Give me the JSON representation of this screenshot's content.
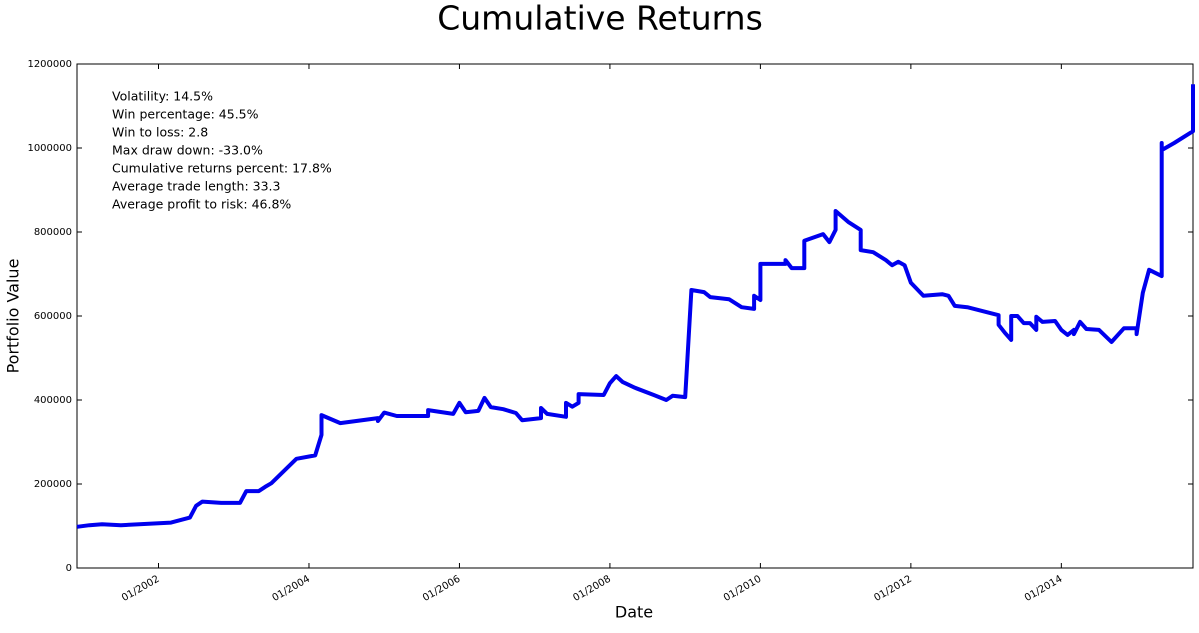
{
  "chart_data": {
    "type": "line",
    "title": "Cumulative Returns",
    "xlabel": "Date",
    "ylabel": "Portfolio Value",
    "annotations": [
      "Volatility: 14.5%",
      "Win percentage: 45.5%",
      "Win to loss: 2.8",
      "Max draw down: -33.0%",
      "Cumulative returns percent: 17.8%",
      "Average trade length: 33.3",
      "Average profit to risk: 46.8%"
    ],
    "xlim": [
      "2000-12",
      "2015-10"
    ],
    "xticks": [
      {
        "value": "2002-01",
        "label": "01/2002"
      },
      {
        "value": "2004-01",
        "label": "01/2004"
      },
      {
        "value": "2006-01",
        "label": "01/2006"
      },
      {
        "value": "2008-01",
        "label": "01/2008"
      },
      {
        "value": "2010-01",
        "label": "01/2010"
      },
      {
        "value": "2012-01",
        "label": "01/2012"
      },
      {
        "value": "2014-01",
        "label": "01/2014"
      }
    ],
    "ylim": [
      0,
      1200000
    ],
    "yticks": [
      0,
      200000,
      400000,
      600000,
      800000,
      1000000,
      1200000
    ],
    "grid": false,
    "x": [
      "2000-12",
      "2001-02",
      "2001-04",
      "2001-07",
      "2002-03",
      "2002-06",
      "2002-07",
      "2002-08",
      "2002-11",
      "2003-02",
      "2003-03",
      "2003-05",
      "2003-06",
      "2003-07",
      "2003-11",
      "2004-02",
      "2004-03",
      "2004-03",
      "2004-06",
      "2004-12",
      "2004-12",
      "2005-01",
      "2005-03",
      "2005-08",
      "2005-08",
      "2005-12",
      "2006-01",
      "2006-02",
      "2006-04",
      "2006-05",
      "2006-06",
      "2006-08",
      "2006-10",
      "2006-11",
      "2007-02",
      "2007-02",
      "2007-03",
      "2007-06",
      "2007-06",
      "2007-07",
      "2007-08",
      "2007-08",
      "2007-12",
      "2008-01",
      "2008-02",
      "2008-03",
      "2008-05",
      "2008-08",
      "2008-10",
      "2008-11",
      "2009-01",
      "2009-02",
      "2009-04",
      "2009-05",
      "2009-08",
      "2009-10",
      "2009-12",
      "2009-12",
      "2010-01",
      "2010-01",
      "2010-05",
      "2010-05",
      "2010-06",
      "2010-08",
      "2010-08",
      "2010-11",
      "2010-12",
      "2011-01",
      "2011-01",
      "2011-03",
      "2011-05",
      "2011-05",
      "2011-07",
      "2011-09",
      "2011-10",
      "2011-11",
      "2011-12",
      "2012-01",
      "2012-03",
      "2012-06",
      "2012-07",
      "2012-08",
      "2012-10",
      "2013-03",
      "2013-03",
      "2013-04",
      "2013-05",
      "2013-05",
      "2013-06",
      "2013-07",
      "2013-08",
      "2013-09",
      "2013-09",
      "2013-10",
      "2013-12",
      "2014-01",
      "2014-02",
      "2014-03",
      "2014-03",
      "2014-04",
      "2014-05",
      "2014-07",
      "2014-09",
      "2014-11",
      "2015-01",
      "2015-01",
      "2015-02",
      "2015-03",
      "2015-05",
      "2015-05",
      "2015-05",
      "2015-05",
      "2015-07",
      "2015-10",
      "2015-10"
    ],
    "series": [
      {
        "name": "Portfolio Value",
        "color": "#0000ee",
        "values": [
          98000,
          102000,
          104000,
          102000,
          108000,
          120000,
          148000,
          158000,
          155000,
          155000,
          183000,
          183000,
          193000,
          202000,
          260000,
          268000,
          317000,
          364000,
          345000,
          357000,
          350000,
          370000,
          362000,
          362000,
          376000,
          367000,
          393000,
          371000,
          374000,
          405000,
          383000,
          378000,
          369000,
          352000,
          357000,
          381000,
          367000,
          360000,
          393000,
          384000,
          393000,
          414000,
          412000,
          440000,
          457000,
          443000,
          429000,
          412000,
          400000,
          410000,
          407000,
          662000,
          657000,
          645000,
          640000,
          621000,
          617000,
          648000,
          638000,
          724000,
          724000,
          733000,
          714000,
          714000,
          779000,
          795000,
          776000,
          805000,
          850000,
          824000,
          805000,
          757000,
          752000,
          733000,
          721000,
          729000,
          721000,
          679000,
          648000,
          652000,
          648000,
          624000,
          621000,
          602000,
          579000,
          560000,
          543000,
          600000,
          600000,
          583000,
          583000,
          567000,
          598000,
          586000,
          588000,
          567000,
          555000,
          567000,
          557000,
          586000,
          569000,
          567000,
          538000,
          571000,
          571000,
          557000,
          655000,
          710000,
          695000,
          776000,
          1012000,
          995000,
          1012000,
          1040000,
          1152000
        ]
      }
    ]
  }
}
